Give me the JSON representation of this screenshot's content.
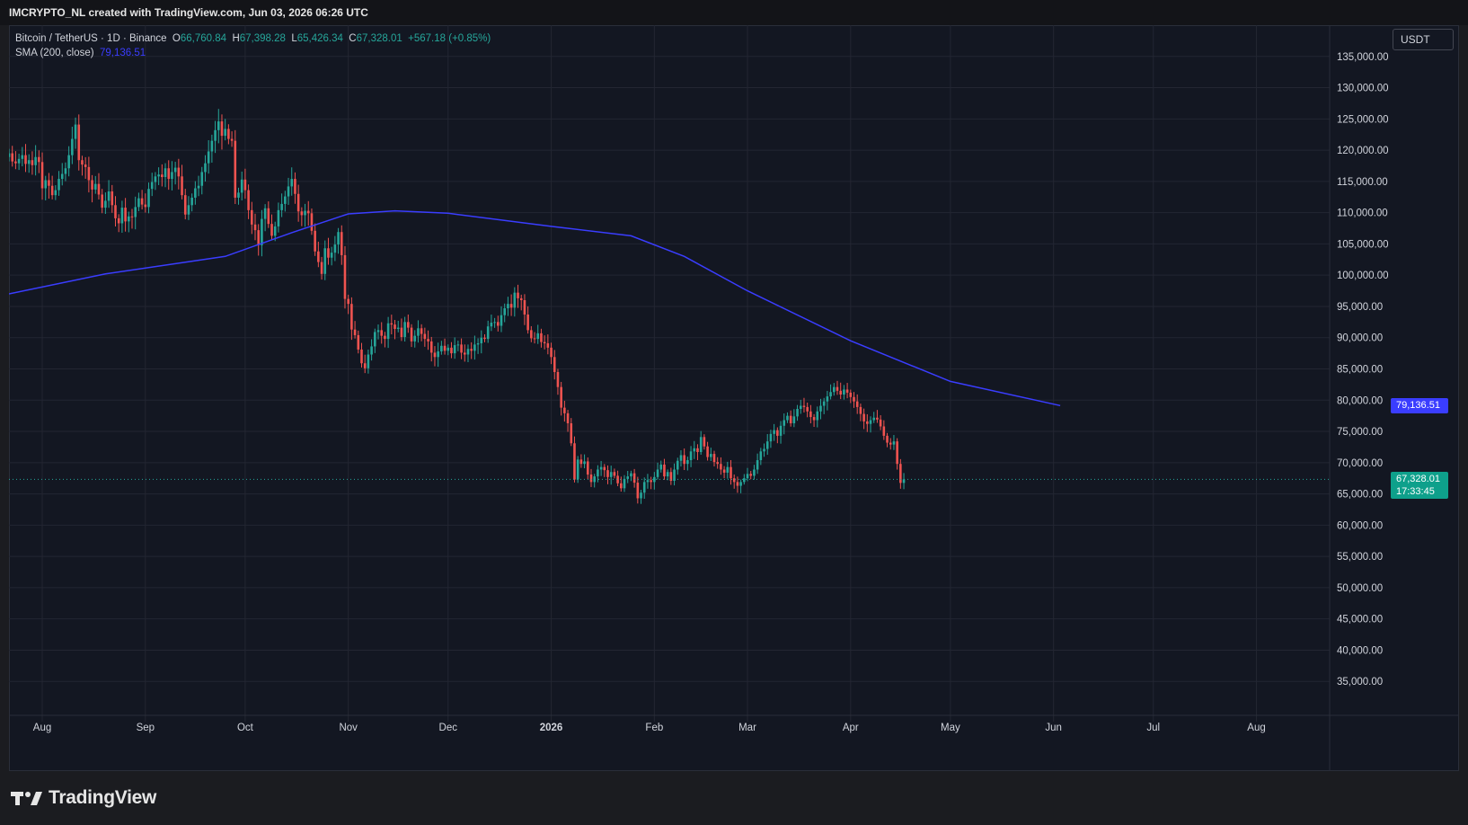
{
  "header": {
    "text": "IMCRYPTO_NL created with TradingView.com, Jun 03, 2026 06:26 UTC"
  },
  "legend": {
    "symbol": "Bitcoin / TetherUS · 1D · Binance",
    "o_label": "O",
    "o_value": "66,760.84",
    "h_label": "H",
    "h_value": "67,398.28",
    "l_label": "L",
    "l_value": "65,426.34",
    "c_label": "C",
    "c_value": "67,328.01",
    "change": "+567.18 (+0.85%)",
    "sma_label": "SMA (200, close)",
    "sma_value": "79,136.51"
  },
  "currency": "USDT",
  "price_tags": {
    "sma": "79,136.51",
    "last": "67,328.01",
    "countdown": "17:33:45"
  },
  "footer": {
    "brand": "TradingView"
  },
  "colors": {
    "background": "#131722",
    "grid": "#232632",
    "up": "#26a69a",
    "down": "#ef5350",
    "sma": "#3a3dff",
    "text": "#d1d4dc"
  },
  "chart_data": {
    "type": "candlestick",
    "y_scale": {
      "min": 30000,
      "max": 140000
    },
    "y_ticks": [
      35000,
      40000,
      45000,
      50000,
      55000,
      60000,
      65000,
      70000,
      75000,
      80000,
      85000,
      90000,
      95000,
      100000,
      105000,
      110000,
      115000,
      120000,
      125000,
      130000,
      135000
    ],
    "y_tick_labels": [
      "35,000.00",
      "40,000.00",
      "45,000.00",
      "50,000.00",
      "55,000.00",
      "60,000.00",
      "65,000.00",
      "70,000.00",
      "75,000.00",
      "80,000.00",
      "85,000.00",
      "90,000.00",
      "95,000.00",
      "100,000.00",
      "105,000.00",
      "110,000.00",
      "115,000.00",
      "120,000.00",
      "125,000.00",
      "130,000.00",
      "135,000.00"
    ],
    "x_range": [
      "2025-07-22",
      "2026-08-23"
    ],
    "x_ticks": [
      {
        "date": "2025-08-01",
        "label": "Aug"
      },
      {
        "date": "2025-09-01",
        "label": "Sep"
      },
      {
        "date": "2025-10-01",
        "label": "Oct"
      },
      {
        "date": "2025-11-01",
        "label": "Nov"
      },
      {
        "date": "2025-12-01",
        "label": "Dec"
      },
      {
        "date": "2026-01-01",
        "label": "2026"
      },
      {
        "date": "2026-02-01",
        "label": "Feb"
      },
      {
        "date": "2026-03-01",
        "label": "Mar"
      },
      {
        "date": "2026-04-01",
        "label": "Apr"
      },
      {
        "date": "2026-05-01",
        "label": "May"
      },
      {
        "date": "2026-06-01",
        "label": "Jun"
      },
      {
        "date": "2026-07-01",
        "label": "Jul"
      },
      {
        "date": "2026-08-01",
        "label": "Aug"
      }
    ],
    "start_date": "2025-07-22",
    "closes": [
      119500,
      118200,
      117900,
      118600,
      119200,
      117800,
      118400,
      117600,
      118900,
      118100,
      113900,
      115200,
      114300,
      112800,
      113600,
      115400,
      116200,
      117100,
      119200,
      121800,
      124100,
      118400,
      117700,
      117300,
      115200,
      113700,
      114600,
      112900,
      110800,
      111900,
      113400,
      111200,
      109100,
      108300,
      110800,
      108600,
      109400,
      109300,
      110900,
      112300,
      111300,
      110900,
      113800,
      114900,
      115800,
      116100,
      115700,
      117100,
      115400,
      116500,
      117200,
      115800,
      112800,
      109700,
      111200,
      112400,
      113900,
      114300,
      116500,
      117900,
      119800,
      121500,
      123200,
      124600,
      122300,
      123400,
      121800,
      121500,
      112400,
      113200,
      115300,
      113600,
      110400,
      108100,
      107200,
      104800,
      109000,
      110700,
      108200,
      106300,
      107800,
      110400,
      111400,
      112600,
      114200,
      115400,
      113000,
      110200,
      109600,
      110300,
      109900,
      107100,
      103800,
      102100,
      100200,
      104300,
      102800,
      103600,
      104900,
      106900,
      103200,
      96200,
      95400,
      91300,
      90400,
      88100,
      85900,
      85100,
      87300,
      88600,
      90900,
      91200,
      90300,
      89800,
      92300,
      92100,
      91400,
      91600,
      90100,
      92500,
      91600,
      89400,
      90300,
      91500,
      90600,
      89800,
      89400,
      87600,
      86900,
      87800,
      88700,
      87900,
      88400,
      87500,
      88800,
      88900,
      87600,
      87300,
      88200,
      87900,
      88900,
      89100,
      90000,
      89800,
      91800,
      92400,
      92500,
      91900,
      93600,
      94700,
      95400,
      94800,
      97200,
      96300,
      96000,
      93700,
      91200,
      89900,
      89800,
      90700,
      89300,
      89100,
      88400,
      86900,
      84500,
      82100,
      78800,
      77900,
      76300,
      73100,
      67300,
      70500,
      69800,
      70200,
      68100,
      66900,
      67800,
      68900,
      69300,
      68800,
      67700,
      68500,
      67900,
      66700,
      65900,
      67400,
      67800,
      68300,
      66800,
      64300,
      65200,
      66900,
      67200,
      66900,
      67700,
      68900,
      69700,
      67800,
      68500,
      67100,
      68900,
      70300,
      71200,
      69800,
      70400,
      71800,
      72300,
      71700,
      74100,
      72600,
      70900,
      71400,
      70100,
      69800,
      68900,
      68400,
      69300,
      67500,
      66900,
      66300,
      66900,
      67500,
      68200,
      67900,
      68900,
      70400,
      71800,
      72200,
      73400,
      74600,
      75200,
      74300,
      75900,
      76800,
      77500,
      76300,
      77400,
      78600,
      79100,
      78900,
      78200,
      77300,
      76800,
      78200,
      79100,
      79800,
      80600,
      81300,
      82100,
      81500,
      80900,
      81700,
      81200,
      80500,
      79800,
      78900,
      77800,
      76600,
      76200,
      76800,
      77200,
      76900,
      75800,
      74300,
      73200,
      72900,
      73400,
      69800,
      66760,
      67328
    ],
    "sma": [
      {
        "date": "2025-07-22",
        "value": 97000
      },
      {
        "date": "2025-08-20",
        "value": 100200
      },
      {
        "date": "2025-09-25",
        "value": 103000
      },
      {
        "date": "2025-10-15",
        "value": 106800
      },
      {
        "date": "2025-11-01",
        "value": 109800
      },
      {
        "date": "2025-11-15",
        "value": 110300
      },
      {
        "date": "2025-12-01",
        "value": 109900
      },
      {
        "date": "2026-01-01",
        "value": 107800
      },
      {
        "date": "2026-01-25",
        "value": 106300
      },
      {
        "date": "2026-02-10",
        "value": 103000
      },
      {
        "date": "2026-03-01",
        "value": 97500
      },
      {
        "date": "2026-04-01",
        "value": 89500
      },
      {
        "date": "2026-05-01",
        "value": 83000
      },
      {
        "date": "2026-06-03",
        "value": 79136.51
      }
    ]
  }
}
